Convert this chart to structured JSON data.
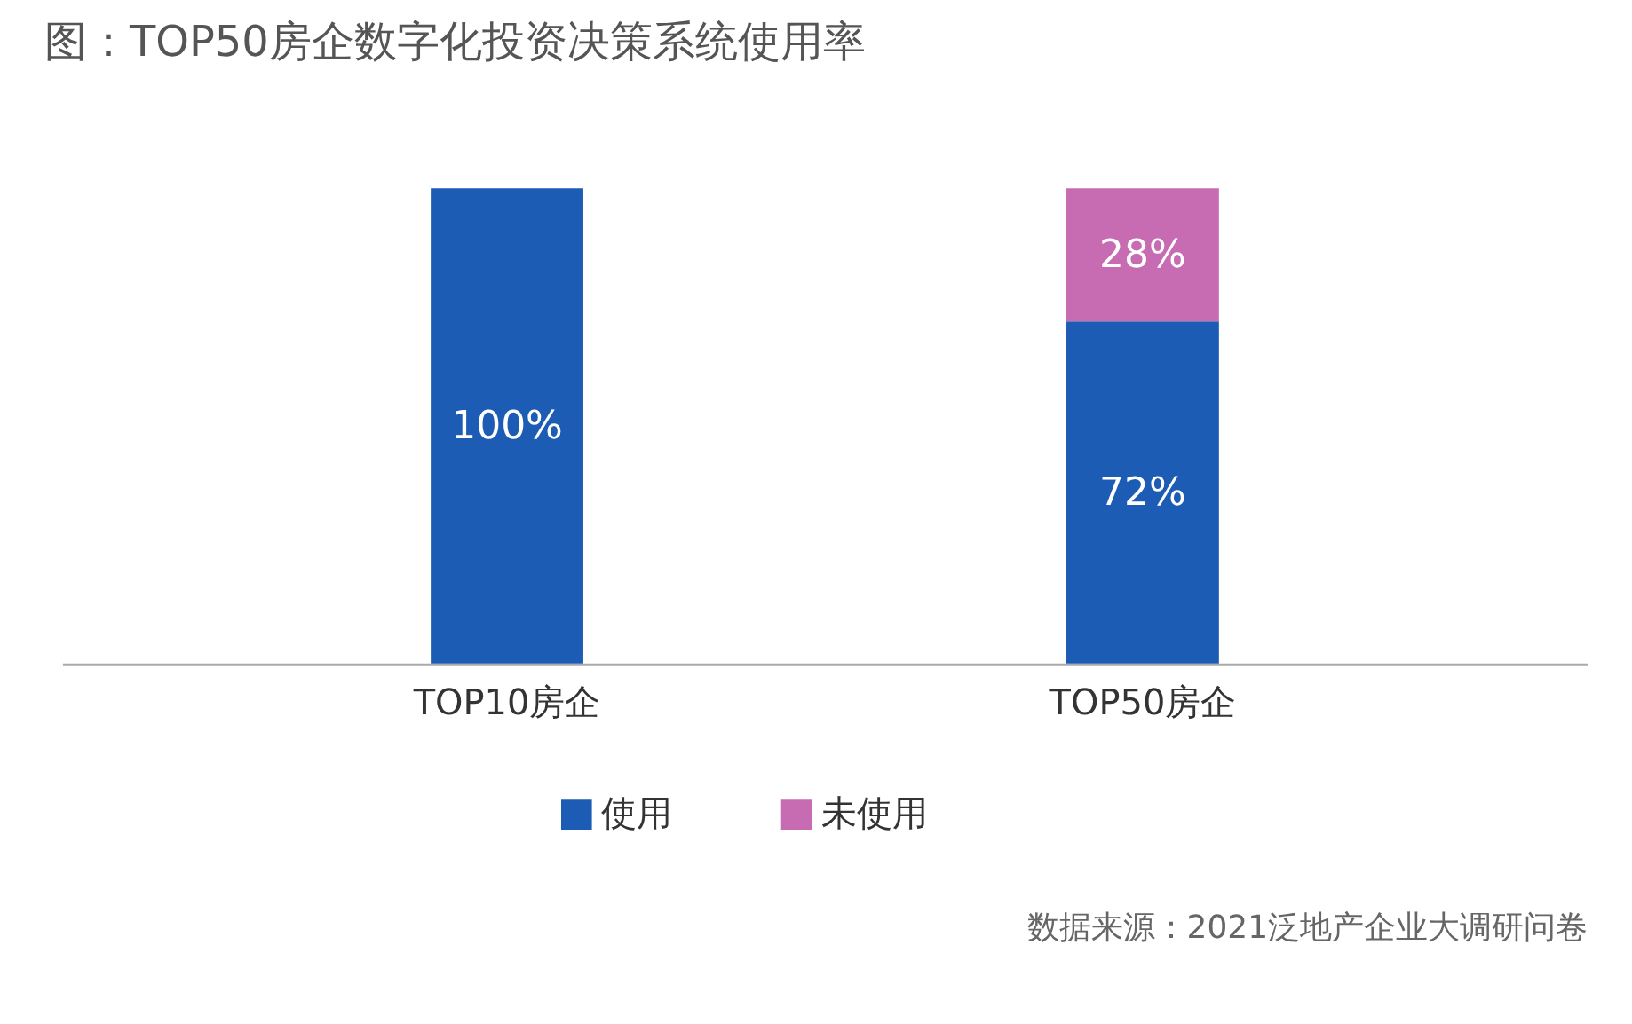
{
  "chart_data": {
    "type": "bar",
    "title": "图：TOP50房企数字化投资决策系统使用率",
    "categories": [
      "TOP10房企",
      "TOP50房企"
    ],
    "stacked": true,
    "legend": "bottom",
    "grid": false,
    "series": [
      {
        "name": "使用",
        "color": "#1c5cb4",
        "values": [
          100,
          72
        ],
        "value_labels": [
          "100%",
          "72%"
        ]
      },
      {
        "name": "未使用",
        "color": "#c76bb3",
        "values": [
          null,
          28
        ],
        "value_labels": [
          null,
          "28%"
        ]
      }
    ],
    "annotations": [
      "数据来源：2021泛地产企业大调研问卷"
    ]
  }
}
